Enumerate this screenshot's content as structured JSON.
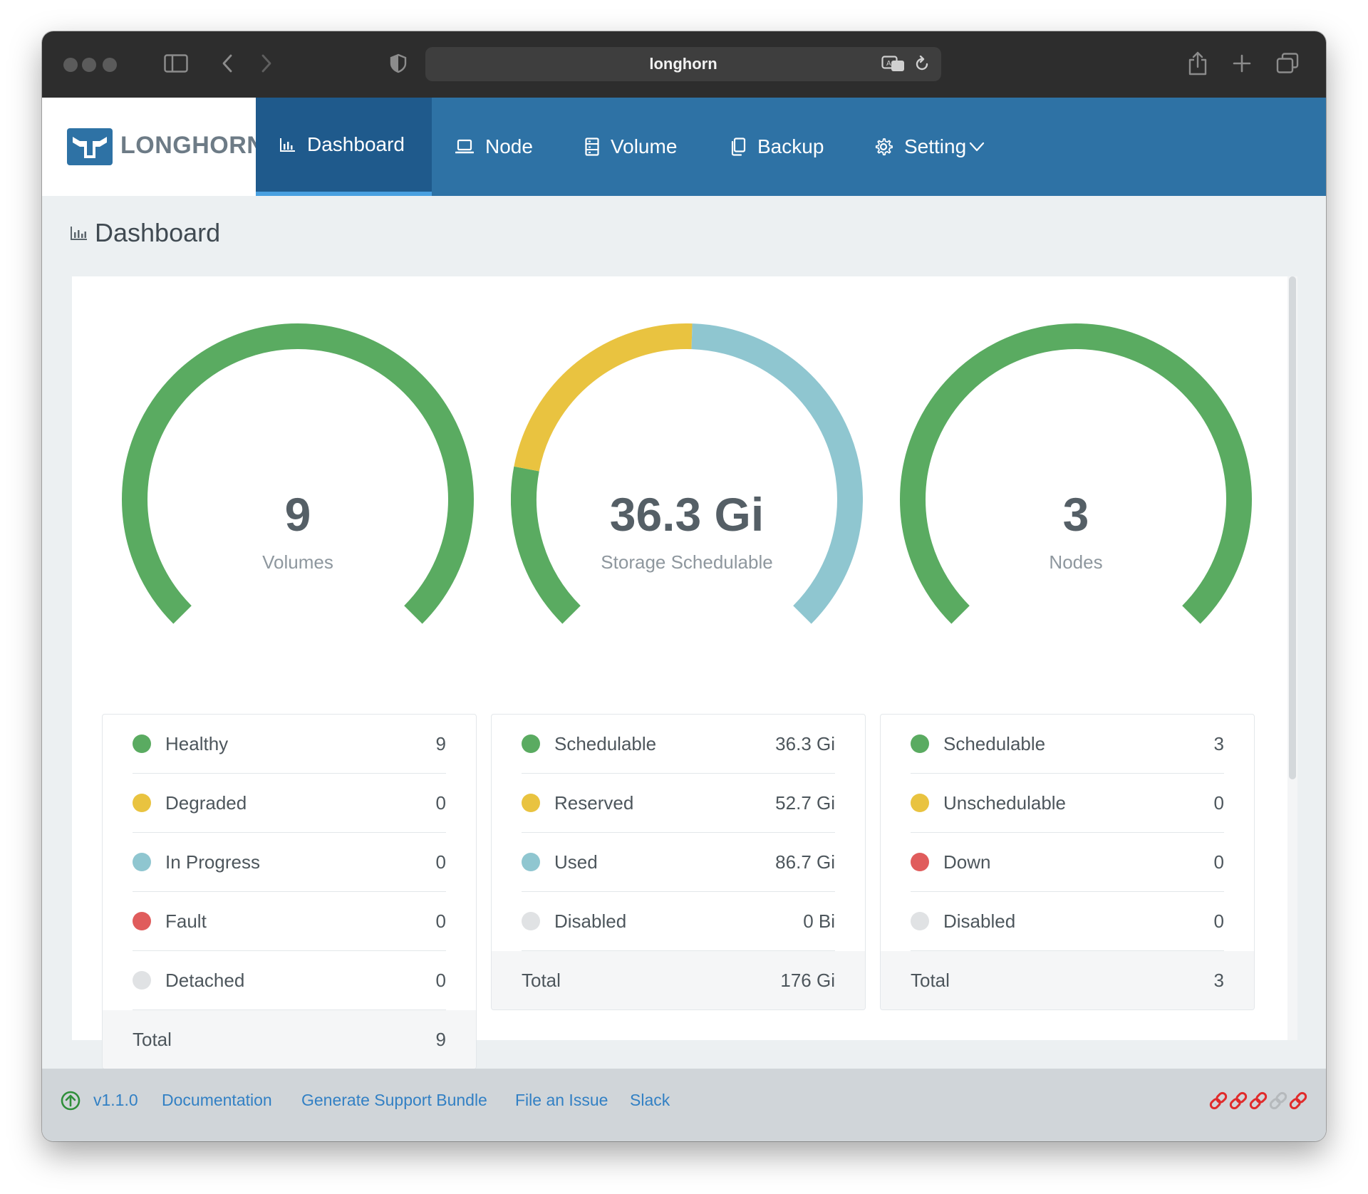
{
  "browser": {
    "url": "longhorn"
  },
  "brand": {
    "name": "LONGHORN"
  },
  "nav": {
    "items": [
      {
        "label": "Dashboard",
        "icon": "bar-chart-icon",
        "active": true
      },
      {
        "label": "Node",
        "icon": "laptop-icon",
        "active": false
      },
      {
        "label": "Volume",
        "icon": "database-icon",
        "active": false
      },
      {
        "label": "Backup",
        "icon": "copy-icon",
        "active": false
      },
      {
        "label": "Setting",
        "icon": "gear-icon",
        "active": false
      }
    ]
  },
  "page": {
    "title": "Dashboard"
  },
  "gauges": [
    {
      "value": "9",
      "label": "Volumes",
      "segments": [
        {
          "name": "Healthy",
          "value": 9,
          "color": "#5aab61"
        }
      ]
    },
    {
      "value": "36.3 Gi",
      "label": "Storage Schedulable",
      "segments": [
        {
          "name": "Schedulable",
          "value": 36.3,
          "color": "#5aab61"
        },
        {
          "name": "Reserved",
          "value": 52.7,
          "color": "#e9c340"
        },
        {
          "name": "Used",
          "value": 86.7,
          "color": "#8fc6d0"
        }
      ]
    },
    {
      "value": "3",
      "label": "Nodes",
      "segments": [
        {
          "name": "Schedulable",
          "value": 3,
          "color": "#5aab61"
        }
      ]
    }
  ],
  "volumes_stats": {
    "rows": [
      {
        "label": "Healthy",
        "value": "9",
        "color": "#5aab61"
      },
      {
        "label": "Degraded",
        "value": "0",
        "color": "#e9c340"
      },
      {
        "label": "In Progress",
        "value": "0",
        "color": "#8fc6d0"
      },
      {
        "label": "Fault",
        "value": "0",
        "color": "#e05c5c"
      },
      {
        "label": "Detached",
        "value": "0",
        "color": "#e0e2e4"
      }
    ],
    "total_label": "Total",
    "total_value": "9"
  },
  "storage_stats": {
    "rows": [
      {
        "label": "Schedulable",
        "value": "36.3 Gi",
        "color": "#5aab61"
      },
      {
        "label": "Reserved",
        "value": "52.7 Gi",
        "color": "#e9c340"
      },
      {
        "label": "Used",
        "value": "86.7 Gi",
        "color": "#8fc6d0"
      },
      {
        "label": "Disabled",
        "value": "0 Bi",
        "color": "#e0e2e4"
      }
    ],
    "total_label": "Total",
    "total_value": "176 Gi"
  },
  "node_stats": {
    "rows": [
      {
        "label": "Schedulable",
        "value": "3",
        "color": "#5aab61"
      },
      {
        "label": "Unschedulable",
        "value": "0",
        "color": "#e9c340"
      },
      {
        "label": "Down",
        "value": "0",
        "color": "#e05c5c"
      },
      {
        "label": "Disabled",
        "value": "0",
        "color": "#e0e2e4"
      }
    ],
    "total_label": "Total",
    "total_value": "3"
  },
  "footer": {
    "version": "v1.1.0",
    "links": [
      "Documentation",
      "Generate Support Bundle",
      "File an Issue",
      "Slack"
    ],
    "connection_icons": [
      "link-icon",
      "link-icon",
      "link-icon",
      "link-icon",
      "link-icon"
    ],
    "connection_colors": [
      "#e02b2b",
      "#e02b2b",
      "#e02b2b",
      "#b5b9bc",
      "#e02b2b"
    ]
  }
}
